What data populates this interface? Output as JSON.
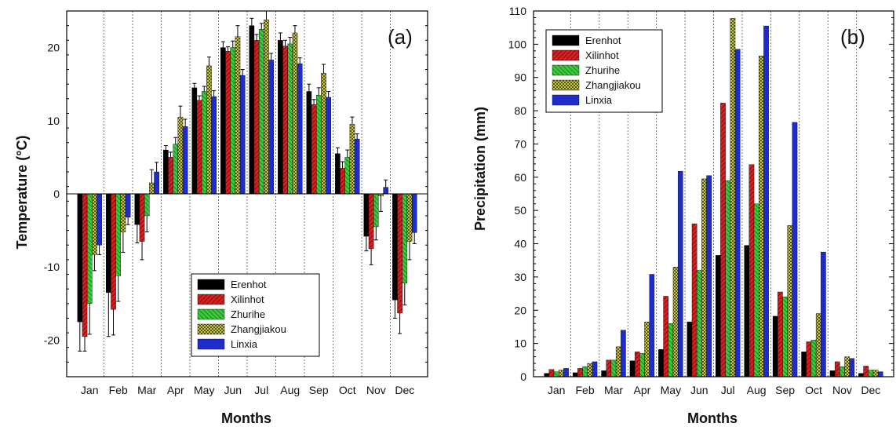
{
  "colors": {
    "Erenhot": "#000000",
    "Xilinhot": "#d42020",
    "Zhurihe": "#3cc83c",
    "Zhangjiakou": "#c8c84a",
    "Linxia": "#1f2ccc"
  },
  "chart_data": [
    {
      "type": "bar",
      "panel_label": "(a)",
      "xlabel": "Months",
      "ylabel": "Temperature (°C)",
      "ylim": [
        -25,
        25
      ],
      "yticks": [
        -20,
        -10,
        0,
        10,
        20
      ],
      "grid": "vertical dotted",
      "legend_position": "lower-right",
      "categories": [
        "Jan",
        "Feb",
        "Mar",
        "Apr",
        "May",
        "Jun",
        "Jul",
        "Aug",
        "Sep",
        "Oct",
        "Nov",
        "Dec"
      ],
      "series": [
        {
          "name": "Erenhot",
          "values": [
            -17.5,
            -13.5,
            -4.2,
            6.0,
            14.5,
            20.0,
            23.0,
            21.0,
            14.0,
            5.5,
            -5.8,
            -14.5
          ]
        },
        {
          "name": "Xilinhot",
          "values": [
            -19.5,
            -15.8,
            -6.5,
            5.0,
            12.8,
            19.5,
            21.0,
            20.2,
            12.2,
            3.5,
            -7.5,
            -16.3
          ]
        },
        {
          "name": "Zhurihe",
          "values": [
            -15.0,
            -11.2,
            -3.0,
            6.8,
            14.0,
            20.0,
            22.5,
            20.5,
            13.5,
            5.0,
            -4.5,
            -12.2
          ]
        },
        {
          "name": "Zhangjiakou",
          "values": [
            -8.3,
            -5.2,
            1.5,
            10.5,
            17.5,
            21.5,
            23.8,
            22.0,
            16.5,
            9.5,
            -0.3,
            -6.5
          ]
        },
        {
          "name": "Linxia",
          "values": [
            -7.0,
            -3.2,
            3.0,
            9.2,
            13.3,
            16.2,
            18.3,
            17.8,
            13.2,
            7.5,
            0.9,
            -5.3
          ]
        }
      ],
      "errors": [
        [
          4,
          6,
          2.5,
          0.6,
          0.6,
          0.8,
          1.0,
          1.0,
          1.0,
          0.8,
          2.0,
          2.5
        ],
        [
          2,
          3.5,
          2.5,
          0.7,
          0.6,
          0.6,
          0.8,
          0.8,
          0.7,
          0.9,
          2.2,
          2.8
        ],
        [
          4.2,
          3.5,
          2.2,
          0.9,
          0.7,
          0.9,
          0.8,
          0.9,
          1.0,
          1.0,
          1.8,
          3.0
        ],
        [
          2.2,
          2.8,
          1.8,
          1.5,
          1.2,
          1.5,
          1.2,
          1.0,
          1.2,
          1.0,
          2.1,
          2.5
        ],
        [
          1.3,
          1.0,
          1.3,
          1.0,
          0.8,
          0.8,
          0.9,
          0.8,
          0.8,
          0.7,
          1.0,
          1.5
        ]
      ]
    },
    {
      "type": "bar",
      "panel_label": "(b)",
      "xlabel": "Months",
      "ylabel": "Precipitation (mm)",
      "ylim": [
        0,
        110
      ],
      "yticks": [
        0,
        10,
        20,
        30,
        40,
        50,
        60,
        70,
        80,
        90,
        100,
        110
      ],
      "grid": "vertical dotted",
      "legend_position": "top-left",
      "categories": [
        "Jan",
        "Feb",
        "Mar",
        "Apr",
        "May",
        "Jun",
        "Jul",
        "Aug",
        "Sep",
        "Oct",
        "Nov",
        "Dec"
      ],
      "series": [
        {
          "name": "Erenhot",
          "values": [
            1.0,
            1.2,
            1.8,
            4.8,
            8.2,
            16.5,
            36.5,
            39.5,
            18.2,
            7.5,
            1.8,
            1.0
          ]
        },
        {
          "name": "Xilinhot",
          "values": [
            2.2,
            2.5,
            5.0,
            7.5,
            24.2,
            46.0,
            82.3,
            63.8,
            25.5,
            10.5,
            4.5,
            3.2
          ]
        },
        {
          "name": "Zhurihe",
          "values": [
            1.5,
            3.0,
            5.0,
            7.0,
            16.0,
            32.0,
            59.0,
            52.0,
            24.0,
            11.0,
            3.0,
            2.0
          ]
        },
        {
          "name": "Zhangjiakou",
          "values": [
            2.0,
            4.0,
            9.0,
            16.5,
            33.0,
            59.5,
            107.8,
            96.5,
            45.5,
            19.0,
            6.0,
            2.0
          ]
        },
        {
          "name": "Linxia",
          "values": [
            2.5,
            4.5,
            14.0,
            30.8,
            61.8,
            60.5,
            98.5,
            105.5,
            76.5,
            37.5,
            5.5,
            1.5
          ]
        }
      ]
    }
  ]
}
